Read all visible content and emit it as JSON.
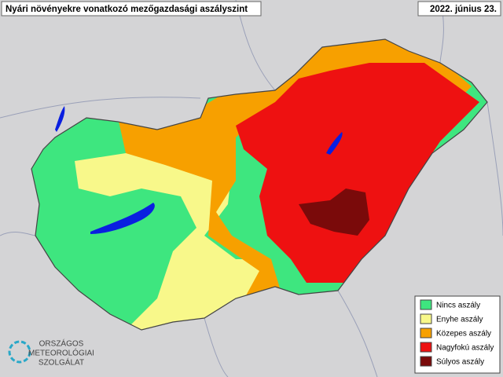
{
  "header": {
    "title": "Nyári növényekre vonatkozó mezőgazdasági aszályszint",
    "date": "2022. június 23."
  },
  "legend": {
    "items": [
      {
        "label": "Nincs aszály",
        "color": "#3ee67f"
      },
      {
        "label": "Enyhe aszály",
        "color": "#f8f88a"
      },
      {
        "label": "Közepes aszály",
        "color": "#f7a000"
      },
      {
        "label": "Nagyfokú aszály",
        "color": "#ee1111"
      },
      {
        "label": "Súlyos aszály",
        "color": "#7a0a0a"
      }
    ]
  },
  "logo": {
    "lines": [
      "ORSZÁGOS",
      "METEOROLÓGIAI",
      "SZOLGÁLAT"
    ]
  }
}
